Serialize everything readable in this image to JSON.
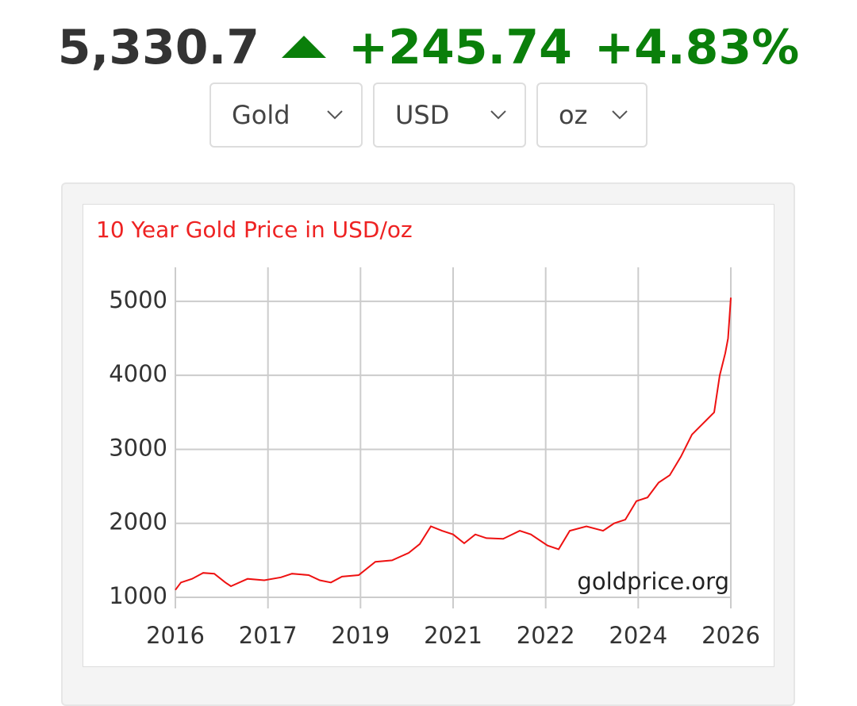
{
  "header": {
    "price": "5,330.7",
    "change": "+245.74",
    "change_percent": "+4.83%"
  },
  "selectors": [
    "Gold",
    "USD",
    "oz"
  ],
  "chart_data": {
    "type": "line",
    "title": "10 Year Gold Price in USD/oz",
    "source": "goldprice.org",
    "color": "#ee1111",
    "grid": true,
    "x": [
      2016.0,
      2016.1,
      2016.3,
      2016.5,
      2016.7,
      2016.9,
      2017.0,
      2017.3,
      2017.6,
      2017.9,
      2018.1,
      2018.4,
      2018.6,
      2018.8,
      2019.0,
      2019.3,
      2019.6,
      2019.9,
      2020.2,
      2020.4,
      2020.6,
      2020.8,
      2021.0,
      2021.2,
      2021.4,
      2021.6,
      2021.9,
      2022.2,
      2022.4,
      2022.7,
      2022.9,
      2023.1,
      2023.4,
      2023.7,
      2023.9,
      2024.1,
      2024.3,
      2024.5,
      2024.7,
      2024.9,
      2025.1,
      2025.3,
      2025.5,
      2025.7,
      2025.8,
      2025.9,
      2025.95,
      2026.0
    ],
    "values": [
      1100,
      1200,
      1250,
      1330,
      1320,
      1200,
      1150,
      1250,
      1230,
      1270,
      1320,
      1300,
      1230,
      1200,
      1280,
      1300,
      1480,
      1500,
      1600,
      1720,
      1960,
      1900,
      1850,
      1730,
      1850,
      1800,
      1790,
      1900,
      1850,
      1700,
      1650,
      1900,
      1960,
      1900,
      2000,
      2050,
      2300,
      2350,
      2550,
      2650,
      2900,
      3200,
      3350,
      3500,
      4000,
      4300,
      4500,
      5050
    ],
    "xlim": [
      2016,
      2026
    ],
    "xticks": [
      2016,
      {
        "value": 2017.667,
        "label": "2017"
      },
      {
        "value": 2019.333,
        "label": "2019"
      },
      2021,
      {
        "value": 2022.667,
        "label": "2022"
      },
      {
        "value": 2024.333,
        "label": "2024"
      },
      2026
    ],
    "ylim": [
      1000,
      5460
    ],
    "yticks": [
      1000,
      2000,
      3000,
      4000,
      5000
    ]
  }
}
